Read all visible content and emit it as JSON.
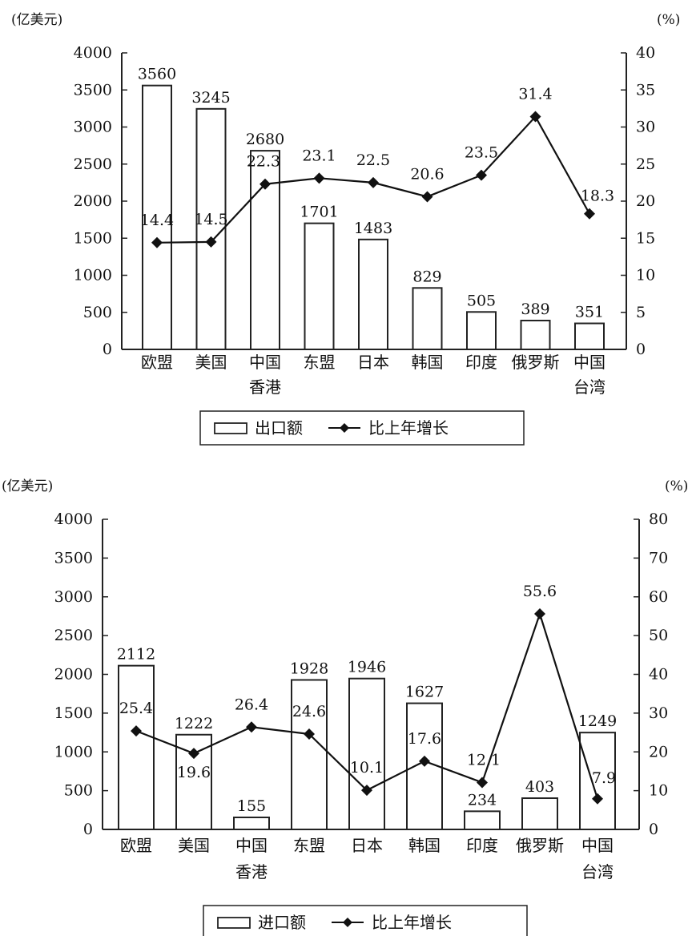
{
  "chart_data": [
    {
      "type": "bar",
      "y_unit_left": "(亿美元)",
      "y_unit_right": "(%)",
      "categories": [
        [
          "欧盟"
        ],
        [
          "美国"
        ],
        [
          "中国",
          "香港"
        ],
        [
          "东盟"
        ],
        [
          "日本"
        ],
        [
          "韩国"
        ],
        [
          "印度"
        ],
        [
          "俄罗斯"
        ],
        [
          "中国",
          "台湾"
        ]
      ],
      "series": [
        {
          "name": "出口额",
          "kind": "bar",
          "axis": "left",
          "values": [
            3560,
            3245,
            2680,
            1701,
            1483,
            829,
            505,
            389,
            351
          ]
        },
        {
          "name": "比上年增长",
          "kind": "line",
          "axis": "right",
          "marker": "diamond",
          "values": [
            14.4,
            14.5,
            22.3,
            23.1,
            22.5,
            20.6,
            23.5,
            31.4,
            18.3
          ]
        }
      ],
      "ylim_left": [
        0,
        4000
      ],
      "yticks_left": [
        0,
        500,
        1000,
        1500,
        2000,
        2500,
        3000,
        3500,
        4000
      ],
      "ylim_right": [
        0,
        40
      ],
      "yticks_right": [
        0,
        5,
        10,
        15,
        20,
        25,
        30,
        35,
        40
      ],
      "legend_position": "bottom-center"
    },
    {
      "type": "bar",
      "y_unit_left": "(亿美元)",
      "y_unit_right": "(%)",
      "categories": [
        [
          "欧盟"
        ],
        [
          "美国"
        ],
        [
          "中国",
          "香港"
        ],
        [
          "东盟"
        ],
        [
          "日本"
        ],
        [
          "韩国"
        ],
        [
          "印度"
        ],
        [
          "俄罗斯"
        ],
        [
          "中国",
          "台湾"
        ]
      ],
      "series": [
        {
          "name": "进口额",
          "kind": "bar",
          "axis": "left",
          "values": [
            2112,
            1222,
            155,
            1928,
            1946,
            1627,
            234,
            403,
            1249
          ]
        },
        {
          "name": "比上年增长",
          "kind": "line",
          "axis": "right",
          "marker": "diamond",
          "values": [
            25.4,
            19.6,
            26.4,
            24.6,
            10.1,
            17.6,
            12.1,
            55.6,
            7.9
          ]
        }
      ],
      "ylim_left": [
        0,
        4000
      ],
      "yticks_left": [
        0,
        500,
        1000,
        1500,
        2000,
        2500,
        3000,
        3500,
        4000
      ],
      "ylim_right": [
        0,
        80
      ],
      "yticks_right": [
        0,
        10,
        20,
        30,
        40,
        50,
        60,
        70,
        80
      ],
      "legend_position": "bottom-center"
    }
  ]
}
